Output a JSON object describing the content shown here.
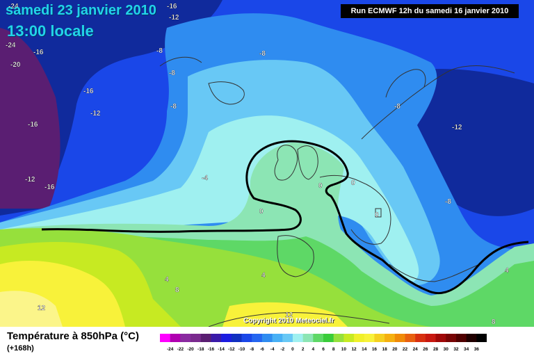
{
  "header": {
    "date": "samedi 23 janvier 2010",
    "time": "13:00 locale",
    "run": "Run ECMWF 12h du samedi 16 janvier 2010"
  },
  "map": {
    "copyright": "Copyright 2010 Meteociel.fr",
    "contour_labels": [
      "-24",
      "-16",
      "-12",
      "-24",
      "-16",
      "-20",
      "-8",
      "-8",
      "-8",
      "-16",
      "-8",
      "-12",
      "-8",
      "-12",
      "-16",
      "-12",
      "-16",
      "-4",
      "0",
      "0",
      "0",
      "0",
      "-8",
      "4",
      "4",
      "8",
      "12",
      "12",
      "8",
      "4"
    ],
    "colors": {
      "violet": "#5a1e72",
      "darkblue": "#102a9c",
      "blue": "#1a47e8",
      "midblue": "#2f8cf0",
      "lightblue": "#68c8f5",
      "cyan": "#9ff0f0",
      "mint": "#8ce5b4",
      "green": "#5ed866",
      "limegreen": "#96e03c",
      "yellowgreen": "#c7ea22",
      "yellow": "#f8f23a",
      "lightyellow": "#fbf58a",
      "zero_line": "#000000",
      "coast": "#333333"
    }
  },
  "legend": {
    "title": "Température à 850hPa (°C)",
    "sub": "(+168h)",
    "ticks": [
      "-24",
      "-22",
      "-20",
      "-18",
      "-16",
      "-14",
      "-12",
      "-10",
      "-8",
      "-6",
      "-4",
      "-2",
      "0",
      "2",
      "4",
      "6",
      "8",
      "10",
      "12",
      "14",
      "16",
      "18",
      "20",
      "22",
      "24",
      "26",
      "28",
      "30",
      "32",
      "34",
      "36"
    ],
    "colors": [
      "#ff00ff",
      "#b000b0",
      "#8a2aa0",
      "#7a2a8e",
      "#5a1e72",
      "#3a1aa8",
      "#1c1ce0",
      "#1030c0",
      "#1a47e8",
      "#2566f0",
      "#2f8cf0",
      "#48b0f5",
      "#68c8f5",
      "#9ff0f0",
      "#8ce5b4",
      "#5ed866",
      "#3acc3a",
      "#96e03c",
      "#c7ea22",
      "#f0f02a",
      "#f8f23a",
      "#f5d020",
      "#f5b010",
      "#f08a08",
      "#e86010",
      "#d83010",
      "#c81810",
      "#a00808",
      "#780404",
      "#500000",
      "#200000",
      "#000000"
    ]
  }
}
